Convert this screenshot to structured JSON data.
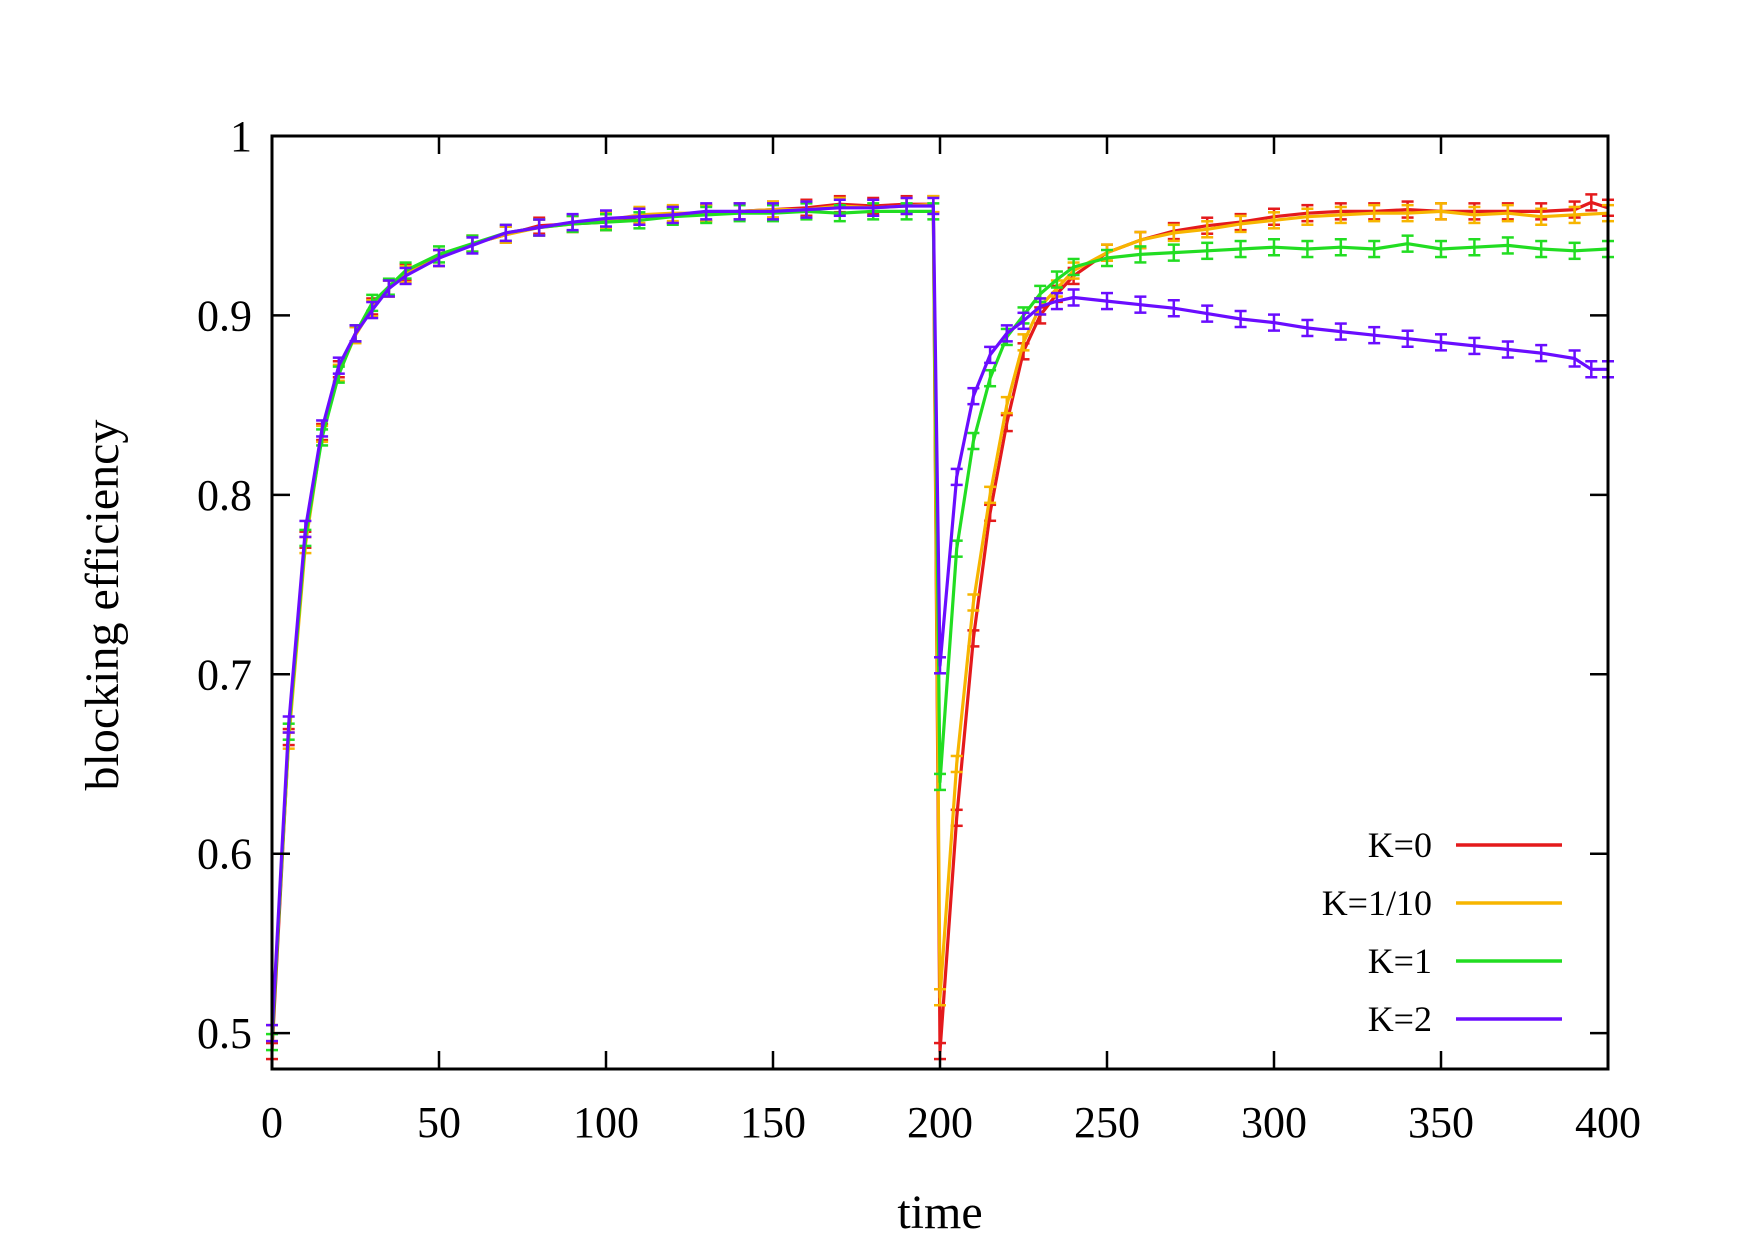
{
  "chart_data": {
    "type": "line",
    "title": "",
    "xlabel": "time",
    "ylabel": "blocking efficiency",
    "xlim": [
      0,
      400
    ],
    "ylim": [
      0.48,
      1.0
    ],
    "xticks": [
      0,
      50,
      100,
      150,
      200,
      250,
      300,
      350,
      400
    ],
    "xtick_labels": [
      "0",
      "50",
      "100",
      "150",
      "200",
      "250",
      "300",
      "350",
      "400"
    ],
    "yticks": [
      0.5,
      0.6,
      0.7,
      0.8,
      0.9,
      1.0
    ],
    "ytick_labels": [
      "0.5",
      "0.6",
      "0.7",
      "0.8",
      "0.9",
      "1"
    ],
    "grid": false,
    "legend_position": "bottom-right",
    "error_bars": true,
    "series": [
      {
        "name": "K=0",
        "color": "#e41a1c",
        "points": [
          [
            0,
            0.49
          ],
          [
            5,
            0.665
          ],
          [
            10,
            0.775
          ],
          [
            15,
            0.835
          ],
          [
            20,
            0.87
          ],
          [
            25,
            0.89
          ],
          [
            30,
            0.905
          ],
          [
            35,
            0.915
          ],
          [
            40,
            0.924
          ],
          [
            50,
            0.932
          ],
          [
            60,
            0.94
          ],
          [
            70,
            0.945
          ],
          [
            80,
            0.95
          ],
          [
            90,
            0.951
          ],
          [
            100,
            0.952
          ],
          [
            110,
            0.955
          ],
          [
            120,
            0.956
          ],
          [
            130,
            0.957
          ],
          [
            140,
            0.958
          ],
          [
            150,
            0.959
          ],
          [
            160,
            0.96
          ],
          [
            170,
            0.962
          ],
          [
            180,
            0.961
          ],
          [
            190,
            0.962
          ],
          [
            198,
            0.962
          ],
          [
            200,
            0.49
          ],
          [
            205,
            0.62
          ],
          [
            210,
            0.72
          ],
          [
            215,
            0.79
          ],
          [
            220,
            0.84
          ],
          [
            225,
            0.88
          ],
          [
            230,
            0.9
          ],
          [
            235,
            0.912
          ],
          [
            240,
            0.922
          ],
          [
            250,
            0.935
          ],
          [
            260,
            0.942
          ],
          [
            270,
            0.947
          ],
          [
            280,
            0.95
          ],
          [
            290,
            0.952
          ],
          [
            300,
            0.955
          ],
          [
            310,
            0.957
          ],
          [
            320,
            0.958
          ],
          [
            330,
            0.958
          ],
          [
            340,
            0.959
          ],
          [
            350,
            0.958
          ],
          [
            360,
            0.958
          ],
          [
            370,
            0.958
          ],
          [
            380,
            0.958
          ],
          [
            390,
            0.959
          ],
          [
            395,
            0.963
          ],
          [
            400,
            0.96
          ]
        ]
      },
      {
        "name": "K=1/10",
        "color": "#f7b500",
        "points": [
          [
            0,
            0.5
          ],
          [
            5,
            0.663
          ],
          [
            10,
            0.772
          ],
          [
            15,
            0.834
          ],
          [
            20,
            0.868
          ],
          [
            25,
            0.889
          ],
          [
            30,
            0.904
          ],
          [
            35,
            0.915
          ],
          [
            40,
            0.923
          ],
          [
            50,
            0.932
          ],
          [
            60,
            0.94
          ],
          [
            70,
            0.945
          ],
          [
            80,
            0.949
          ],
          [
            90,
            0.951
          ],
          [
            100,
            0.953
          ],
          [
            110,
            0.956
          ],
          [
            120,
            0.957
          ],
          [
            130,
            0.957
          ],
          [
            140,
            0.958
          ],
          [
            150,
            0.959
          ],
          [
            160,
            0.959
          ],
          [
            170,
            0.961
          ],
          [
            180,
            0.96
          ],
          [
            190,
            0.961
          ],
          [
            198,
            0.962
          ],
          [
            200,
            0.52
          ],
          [
            205,
            0.65
          ],
          [
            210,
            0.74
          ],
          [
            215,
            0.8
          ],
          [
            220,
            0.85
          ],
          [
            225,
            0.885
          ],
          [
            230,
            0.905
          ],
          [
            235,
            0.915
          ],
          [
            240,
            0.925
          ],
          [
            250,
            0.935
          ],
          [
            260,
            0.942
          ],
          [
            270,
            0.946
          ],
          [
            280,
            0.948
          ],
          [
            290,
            0.951
          ],
          [
            300,
            0.953
          ],
          [
            310,
            0.955
          ],
          [
            320,
            0.956
          ],
          [
            330,
            0.957
          ],
          [
            340,
            0.957
          ],
          [
            350,
            0.958
          ],
          [
            360,
            0.956
          ],
          [
            370,
            0.957
          ],
          [
            380,
            0.955
          ],
          [
            390,
            0.956
          ],
          [
            400,
            0.957
          ]
        ]
      },
      {
        "name": "K=1",
        "color": "#22dd22",
        "points": [
          [
            0,
            0.495
          ],
          [
            5,
            0.668
          ],
          [
            10,
            0.776
          ],
          [
            15,
            0.832
          ],
          [
            20,
            0.867
          ],
          [
            25,
            0.89
          ],
          [
            30,
            0.907
          ],
          [
            35,
            0.916
          ],
          [
            40,
            0.925
          ],
          [
            50,
            0.934
          ],
          [
            60,
            0.94
          ],
          [
            70,
            0.946
          ],
          [
            80,
            0.949
          ],
          [
            90,
            0.951
          ],
          [
            100,
            0.952
          ],
          [
            110,
            0.953
          ],
          [
            120,
            0.955
          ],
          [
            130,
            0.956
          ],
          [
            140,
            0.957
          ],
          [
            150,
            0.957
          ],
          [
            160,
            0.958
          ],
          [
            170,
            0.957
          ],
          [
            180,
            0.958
          ],
          [
            190,
            0.958
          ],
          [
            198,
            0.958
          ],
          [
            200,
            0.64
          ],
          [
            205,
            0.77
          ],
          [
            210,
            0.83
          ],
          [
            215,
            0.865
          ],
          [
            220,
            0.888
          ],
          [
            225,
            0.9
          ],
          [
            230,
            0.912
          ],
          [
            235,
            0.92
          ],
          [
            240,
            0.927
          ],
          [
            250,
            0.932
          ],
          [
            260,
            0.934
          ],
          [
            270,
            0.935
          ],
          [
            280,
            0.936
          ],
          [
            290,
            0.937
          ],
          [
            300,
            0.938
          ],
          [
            310,
            0.937
          ],
          [
            320,
            0.938
          ],
          [
            330,
            0.937
          ],
          [
            340,
            0.94
          ],
          [
            350,
            0.937
          ],
          [
            360,
            0.938
          ],
          [
            370,
            0.939
          ],
          [
            380,
            0.937
          ],
          [
            390,
            0.936
          ],
          [
            400,
            0.937
          ]
        ]
      },
      {
        "name": "K=2",
        "color": "#6a0dff",
        "points": [
          [
            0,
            0.5
          ],
          [
            5,
            0.672
          ],
          [
            10,
            0.781
          ],
          [
            15,
            0.837
          ],
          [
            20,
            0.872
          ],
          [
            25,
            0.89
          ],
          [
            30,
            0.903
          ],
          [
            35,
            0.915
          ],
          [
            40,
            0.922
          ],
          [
            50,
            0.932
          ],
          [
            60,
            0.939
          ],
          [
            70,
            0.946
          ],
          [
            80,
            0.949
          ],
          [
            90,
            0.952
          ],
          [
            100,
            0.954
          ],
          [
            110,
            0.955
          ],
          [
            120,
            0.956
          ],
          [
            130,
            0.958
          ],
          [
            140,
            0.958
          ],
          [
            150,
            0.958
          ],
          [
            160,
            0.959
          ],
          [
            170,
            0.96
          ],
          [
            180,
            0.96
          ],
          [
            190,
            0.961
          ],
          [
            198,
            0.961
          ],
          [
            200,
            0.705
          ],
          [
            205,
            0.81
          ],
          [
            210,
            0.855
          ],
          [
            215,
            0.878
          ],
          [
            220,
            0.89
          ],
          [
            225,
            0.897
          ],
          [
            230,
            0.905
          ],
          [
            235,
            0.908
          ],
          [
            240,
            0.91
          ],
          [
            250,
            0.908
          ],
          [
            260,
            0.906
          ],
          [
            270,
            0.904
          ],
          [
            280,
            0.901
          ],
          [
            290,
            0.898
          ],
          [
            300,
            0.896
          ],
          [
            310,
            0.893
          ],
          [
            320,
            0.891
          ],
          [
            330,
            0.889
          ],
          [
            340,
            0.887
          ],
          [
            350,
            0.885
          ],
          [
            360,
            0.883
          ],
          [
            370,
            0.881
          ],
          [
            380,
            0.879
          ],
          [
            390,
            0.876
          ],
          [
            395,
            0.87
          ],
          [
            400,
            0.87
          ]
        ]
      }
    ]
  }
}
